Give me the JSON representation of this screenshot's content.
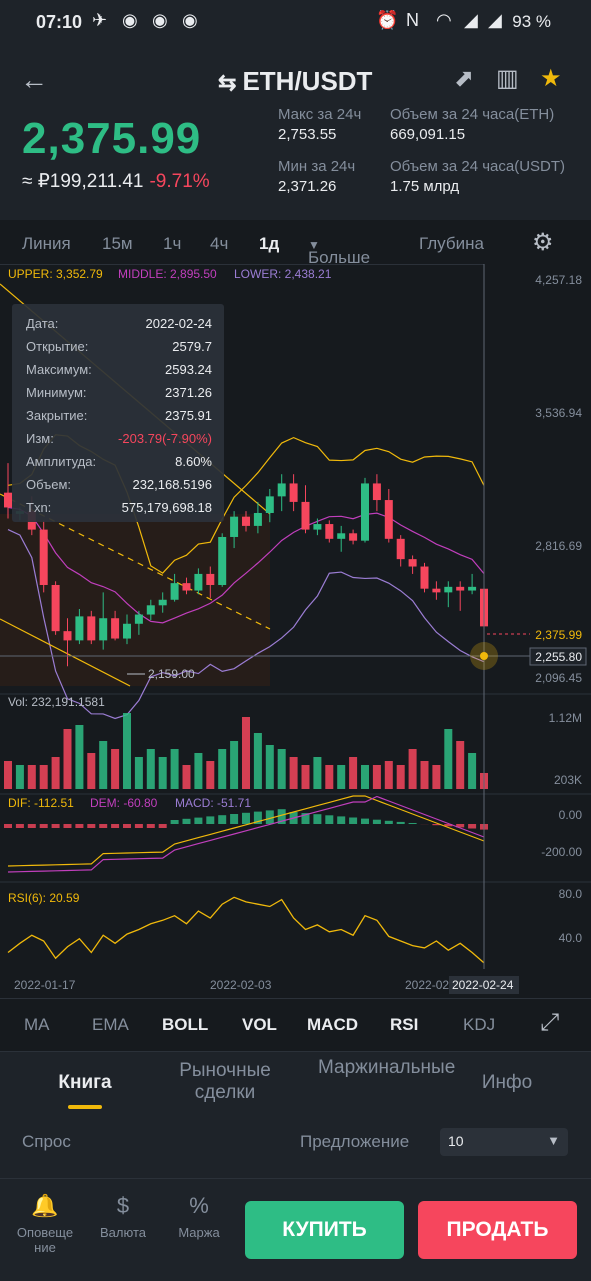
{
  "status": {
    "time": "07:10",
    "battery": "93 %"
  },
  "header": {
    "pair": "ETH/USDT",
    "swap_icon": "⇆",
    "back": "←",
    "price": "2,375.99",
    "fiat": "≈ ₽199,211.41",
    "change": "-9.71%",
    "stats": [
      {
        "label": "Макс за 24ч",
        "value": "2,753.55"
      },
      {
        "label": "Объем за 24 часа(ETH)",
        "value": "669,091.15"
      },
      {
        "label": "Мин за 24ч",
        "value": "2,371.26"
      },
      {
        "label": "Объем за 24 часа(USDT)",
        "value": "1.75 млрд"
      }
    ]
  },
  "timeframes": [
    "Линия",
    "15м",
    "1ч",
    "4ч",
    "1д",
    "Больше",
    "Глубина"
  ],
  "timeframe_more_arrow": "▼",
  "active_timeframe": "1д",
  "chart_data": {
    "type": "candlestick",
    "indicators": {
      "upper": "UPPER: 3,352.79",
      "middle": "MIDDLE: 2,895.50",
      "lower": "LOWER: 2,438.21"
    },
    "price_axis": [
      "4,257.18",
      "3,536.94",
      "2,816.69",
      "2,096.45"
    ],
    "current_price_label": "2,375.99",
    "crosshair_label": "2,255.80",
    "min_label": "2,159.00",
    "tooltip": [
      [
        "Дата:",
        "2022-02-24"
      ],
      [
        "Открытие:",
        "2579.7"
      ],
      [
        "Максимум:",
        "2593.24"
      ],
      [
        "Минимум:",
        "2371.26"
      ],
      [
        "Закрытие:",
        "2375.91"
      ],
      [
        "Изм:",
        "-203.79(-7.90%)"
      ],
      [
        "Амплитуда:",
        "8.60%"
      ],
      [
        "Объем:",
        "232,168.5196"
      ],
      [
        "Txn:",
        "575,179,698.18"
      ]
    ],
    "candles": [
      [
        3100,
        3260,
        2960,
        3020
      ],
      [
        2985,
        3020,
        2950,
        3000
      ],
      [
        3000,
        3080,
        2870,
        2900
      ],
      [
        2900,
        2950,
        2560,
        2600
      ],
      [
        2600,
        2620,
        2330,
        2350
      ],
      [
        2350,
        2420,
        2160,
        2300
      ],
      [
        2300,
        2470,
        2280,
        2430
      ],
      [
        2430,
        2460,
        2280,
        2300
      ],
      [
        2300,
        2560,
        2250,
        2420
      ],
      [
        2420,
        2460,
        2300,
        2310
      ],
      [
        2310,
        2440,
        2280,
        2390
      ],
      [
        2390,
        2460,
        2330,
        2440
      ],
      [
        2440,
        2520,
        2410,
        2490
      ],
      [
        2490,
        2560,
        2450,
        2520
      ],
      [
        2520,
        2660,
        2510,
        2610
      ],
      [
        2610,
        2640,
        2550,
        2570
      ],
      [
        2570,
        2690,
        2550,
        2660
      ],
      [
        2660,
        2700,
        2530,
        2600
      ],
      [
        2600,
        2880,
        2590,
        2860
      ],
      [
        2860,
        3000,
        2800,
        2970
      ],
      [
        2970,
        3000,
        2890,
        2920
      ],
      [
        2920,
        3050,
        2880,
        2990
      ],
      [
        2990,
        3120,
        2940,
        3080
      ],
      [
        3080,
        3200,
        3000,
        3150
      ],
      [
        3150,
        3200,
        3000,
        3050
      ],
      [
        3050,
        3140,
        2880,
        2900
      ],
      [
        2900,
        2960,
        2870,
        2930
      ],
      [
        2930,
        2950,
        2830,
        2850
      ],
      [
        2850,
        2920,
        2780,
        2880
      ],
      [
        2880,
        2900,
        2820,
        2840
      ],
      [
        2840,
        3180,
        2830,
        3150
      ],
      [
        3150,
        3200,
        3000,
        3060
      ],
      [
        3060,
        3120,
        2830,
        2850
      ],
      [
        2850,
        2870,
        2700,
        2740
      ],
      [
        2740,
        2760,
        2660,
        2700
      ],
      [
        2700,
        2720,
        2560,
        2580
      ],
      [
        2580,
        2620,
        2520,
        2560
      ],
      [
        2560,
        2620,
        2480,
        2590
      ],
      [
        2590,
        2620,
        2460,
        2570
      ],
      [
        2570,
        2660,
        2550,
        2590
      ],
      [
        2579.7,
        2593.24,
        2371.26,
        2375.91
      ]
    ],
    "volume": {
      "label": "Vol: 232,191.1581",
      "axis": [
        "1.12M",
        "203K"
      ],
      "values": [
        0.35,
        0.3,
        0.3,
        0.3,
        0.4,
        0.75,
        0.8,
        0.45,
        0.6,
        0.5,
        0.95,
        0.4,
        0.5,
        0.4,
        0.5,
        0.3,
        0.45,
        0.35,
        0.5,
        0.6,
        0.9,
        0.7,
        0.55,
        0.5,
        0.4,
        0.3,
        0.4,
        0.3,
        0.3,
        0.4,
        0.3,
        0.3,
        0.35,
        0.3,
        0.5,
        0.35,
        0.3,
        0.75,
        0.6,
        0.45,
        0.2
      ]
    },
    "macd": {
      "dif": "DIF: -112.51",
      "dem": "DEM: -60.80",
      "macd": "MACD: -51.71",
      "axis": [
        "0.00",
        "-200.00"
      ]
    },
    "rsi": {
      "label": "RSI(6): 20.59",
      "axis": [
        "80.0",
        "40.0"
      ]
    },
    "dates": [
      "2022-01-17",
      "2022-02-03",
      "2022-02-",
      "2022-02-24"
    ]
  },
  "indicator_tabs": [
    "MA",
    "EMA",
    "BOLL",
    "VOL",
    "MACD",
    "RSI",
    "KDJ"
  ],
  "book_tabs": [
    "Книга",
    "Рыночные сделки",
    "Маржинальные",
    "Инфо"
  ],
  "orderbook": {
    "bid": "Спрос",
    "ask": "Предложение",
    "depth": "10",
    "depth_arrow": "▼"
  },
  "bottom": {
    "items": [
      {
        "label": "Оповеще ние",
        "icon": "bell-icon"
      },
      {
        "label": "Валюта",
        "icon": "dollar-icon"
      },
      {
        "label": "Маржа",
        "icon": "margin-icon"
      }
    ],
    "buy": "КУПИТЬ",
    "sell": "ПРОДАТЬ"
  },
  "colors": {
    "up": "#2ebd85",
    "down": "#f6465d",
    "accent": "#f0b90b"
  }
}
